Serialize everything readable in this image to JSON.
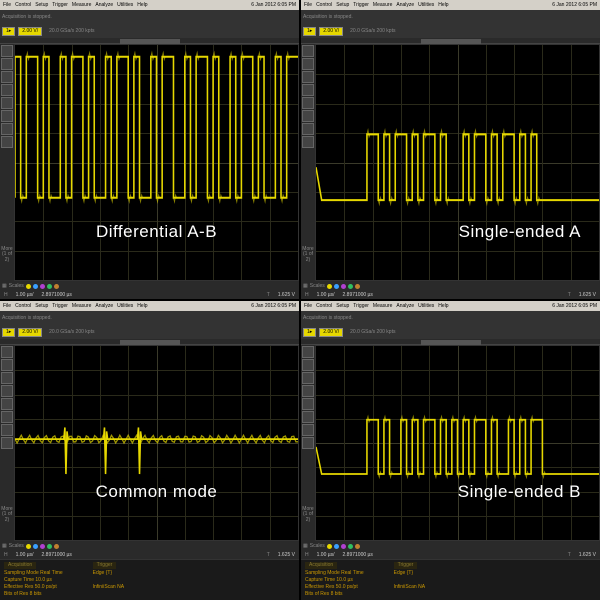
{
  "colors": {
    "waveform": "#e6d800",
    "grid": "#2a2a1a",
    "bg": "#000000",
    "menubar": "#d4d0c8"
  },
  "menubar": {
    "items": [
      "File",
      "Control",
      "Setup",
      "Trigger",
      "Measure",
      "Analyze",
      "Utilities",
      "Help"
    ],
    "timestamp": "6 Jan 2012  6:05 PM"
  },
  "channel": {
    "badge": "2.00 V/",
    "index": "1"
  },
  "acquisition": {
    "line": "Acquisition is stopped.",
    "rate": "20.0 GSa/s   200 kpts"
  },
  "more_label": "More\n(1 of 2)",
  "bottom_dots": [
    "#e6d800",
    "#3aa0ff",
    "#b040d0",
    "#30c060",
    "#c08030"
  ],
  "status": {
    "timebase": "1.00 µs/",
    "trig_time": "2.8971000 µs",
    "trig_level": "1.625 V"
  },
  "info": {
    "acq_header": "Acquisition",
    "sampling": "Sampling Mode  Real Time",
    "capture": "Capture Time  10.0 µs",
    "eff_res": "Effective Res  50.0 ps/pt",
    "bits": "Bits of Res  8 bits",
    "trig_header": "Trigger",
    "trig_mode": "Edge {T}",
    "infiniiscan": "InfiniiScan  NA"
  },
  "panels": [
    {
      "label": "Differential  A-B",
      "label_align": "center",
      "waveform_type": "differential",
      "y_center": 0.35,
      "amplitude": 0.3,
      "pattern": "10110100101101001011010010110010110100101101001011"
    },
    {
      "label": "Single-ended A",
      "label_align": "right",
      "waveform_type": "single",
      "y_center": 0.52,
      "amplitude": 0.14,
      "pattern": "00000000011010110101101000101101011010100000000000"
    },
    {
      "label": "Common mode",
      "label_align": "center",
      "waveform_type": "common",
      "y_center": 0.48,
      "amplitude": 0.02,
      "spikes": [
        0.18,
        0.32,
        0.44
      ],
      "spike_depth": 0.18
    },
    {
      "label": "Single-ended B",
      "label_align": "right",
      "waveform_type": "single",
      "y_center": 0.52,
      "amplitude": 0.14,
      "pattern": "00000000011010010101101010101101001010110000000000"
    }
  ]
}
